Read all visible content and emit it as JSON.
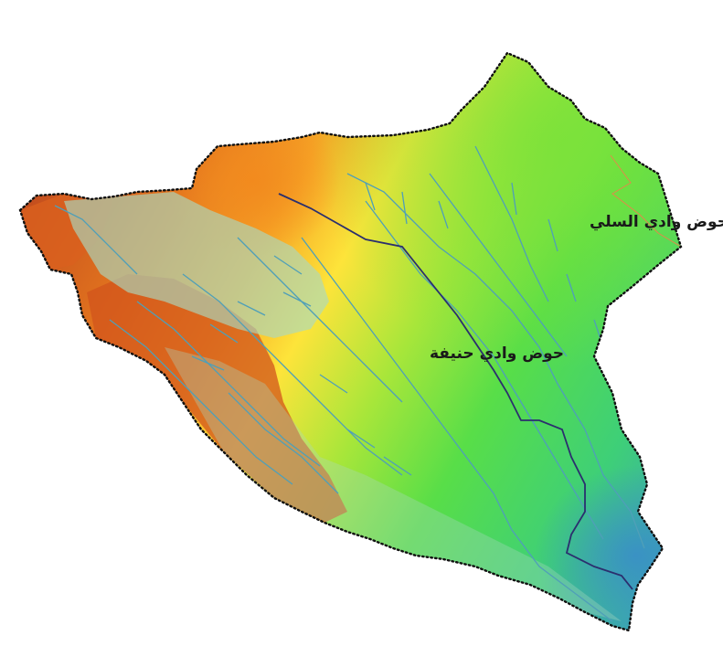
{
  "map": {
    "labels": {
      "sulay_basin": "حوض وادي السلي",
      "hanifa_basin": "حوض وادي حنيفة"
    },
    "legend_colors": {
      "high_elevation": "#c8461e",
      "upper_mid": "#ee8a1c",
      "mid": "#ffe43a",
      "lower_mid": "#8ee23a",
      "low": "#3ed85a",
      "lowest": "#3a9ec8"
    },
    "line_colors": {
      "boundary_dots": "#111111",
      "basin_divide": "#2b2f6e",
      "drainage": "#4f9fb8",
      "urban_overlay": "#a9d8c0"
    }
  }
}
